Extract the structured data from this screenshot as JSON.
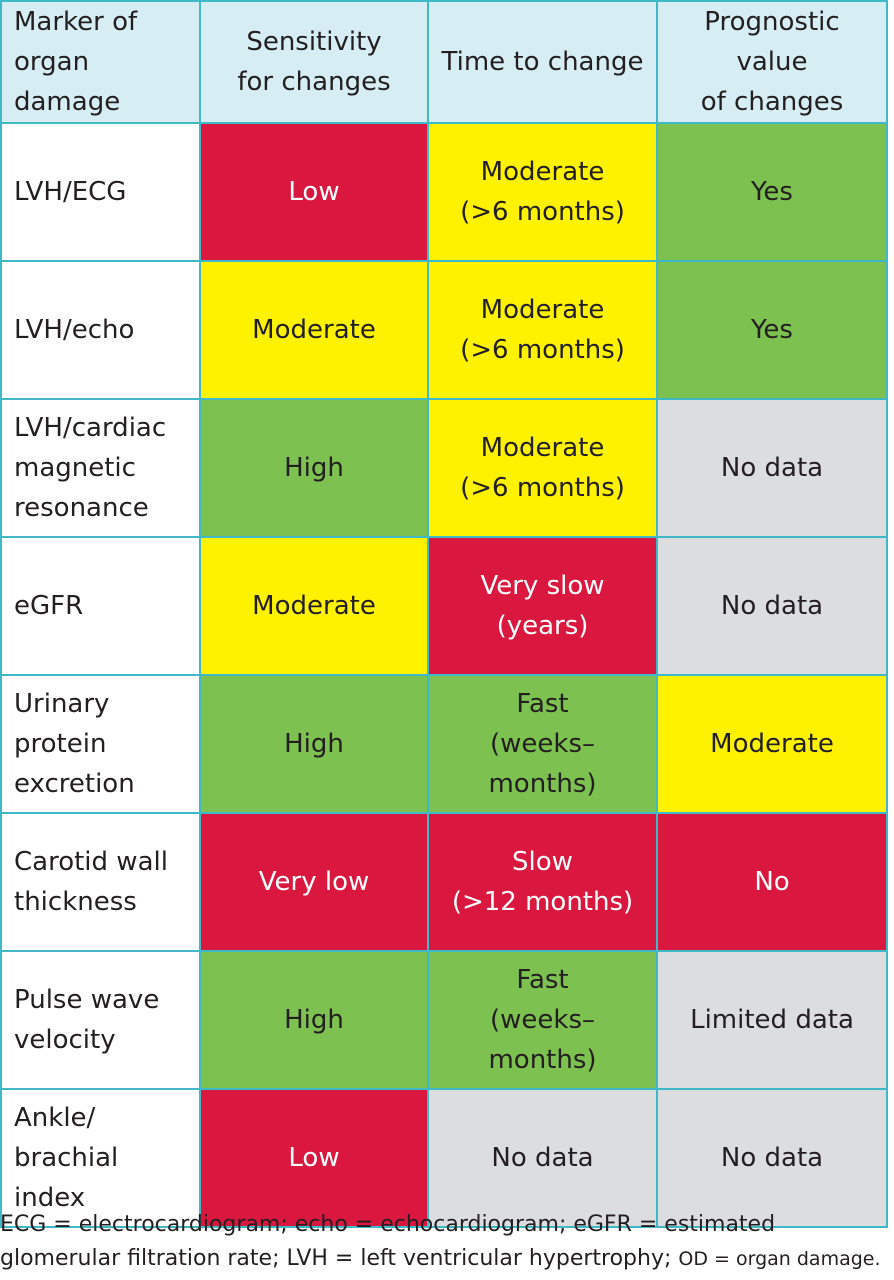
{
  "colors": {
    "border": "#3fb8c8",
    "header_bg": "#d6eef3",
    "red": "#d9173f",
    "yellow": "#fff200",
    "green": "#7dc150",
    "grey": "#dcdddf"
  },
  "table": {
    "headers": [
      "Marker of\norgan damage",
      "Sensitivity\nfor changes",
      "Time to change",
      "Prognostic value\nof changes"
    ],
    "rows": [
      {
        "marker": "LVH/ECG",
        "sensitivity": {
          "text": "Low",
          "level": "red"
        },
        "time": {
          "text": "Moderate\n(>6 months)",
          "level": "yellow"
        },
        "prognostic": {
          "text": "Yes",
          "level": "green"
        }
      },
      {
        "marker": "LVH/echo",
        "sensitivity": {
          "text": "Moderate",
          "level": "yellow"
        },
        "time": {
          "text": "Moderate\n(>6 months)",
          "level": "yellow"
        },
        "prognostic": {
          "text": "Yes",
          "level": "green"
        }
      },
      {
        "marker": "LVH/cardiac\nmagnetic\nresonance",
        "sensitivity": {
          "text": "High",
          "level": "green"
        },
        "time": {
          "text": "Moderate\n(>6 months)",
          "level": "yellow"
        },
        "prognostic": {
          "text": "No data",
          "level": "grey"
        }
      },
      {
        "marker": "eGFR",
        "sensitivity": {
          "text": "Moderate",
          "level": "yellow"
        },
        "time": {
          "text": "Very slow\n(years)",
          "level": "red"
        },
        "prognostic": {
          "text": "No data",
          "level": "grey"
        }
      },
      {
        "marker": "Urinary\nprotein\nexcretion",
        "sensitivity": {
          "text": "High",
          "level": "green"
        },
        "time": {
          "text": "Fast\n(weeks–months)",
          "level": "green"
        },
        "prognostic": {
          "text": "Moderate",
          "level": "yellow"
        }
      },
      {
        "marker": "Carotid wall\nthickness",
        "sensitivity": {
          "text": "Very low",
          "level": "red"
        },
        "time": {
          "text": "Slow\n(>12 months)",
          "level": "red"
        },
        "prognostic": {
          "text": "No",
          "level": "red"
        }
      },
      {
        "marker": "Pulse wave\nvelocity",
        "sensitivity": {
          "text": "High",
          "level": "green"
        },
        "time": {
          "text": "Fast\n(weeks–months)",
          "level": "green"
        },
        "prognostic": {
          "text": "Limited data",
          "level": "grey"
        }
      },
      {
        "marker": "Ankle/\nbrachial\nindex",
        "sensitivity": {
          "text": "Low",
          "level": "red"
        },
        "time": {
          "text": "No data",
          "level": "grey"
        },
        "prognostic": {
          "text": "No data",
          "level": "grey"
        }
      }
    ]
  },
  "footnote": {
    "main": "ECG = electrocardiogram; echo = echocardiogram; eGFR = estimated\nglomerular filtration rate; LVH = left ventricular hypertrophy; ",
    "tail": "OD = organ damage."
  }
}
